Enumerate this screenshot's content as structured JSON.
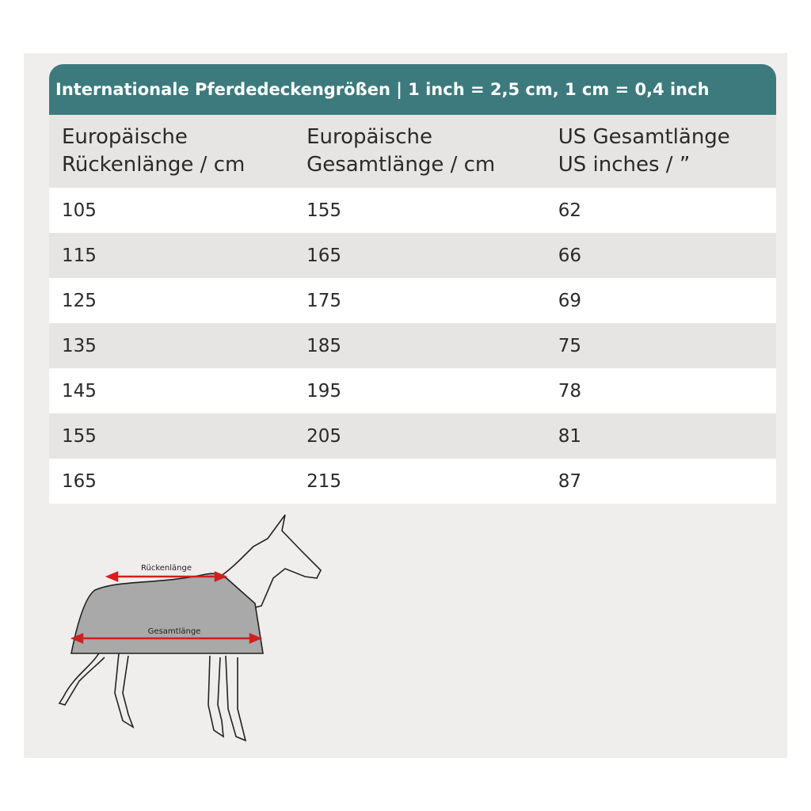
{
  "title": "Internationale Pferdedeckengrößen | 1 inch = 2,5 cm, 1 cm = 0,4 inch",
  "table": {
    "headers": [
      [
        "Europäische",
        "Rückenlänge / cm"
      ],
      [
        "Europäische",
        "Gesamtlänge / cm"
      ],
      [
        "US Gesamtlänge",
        "US inches / ”"
      ]
    ],
    "rows": [
      [
        105,
        155,
        62
      ],
      [
        115,
        165,
        66
      ],
      [
        125,
        175,
        69
      ],
      [
        135,
        185,
        75
      ],
      [
        145,
        195,
        78
      ],
      [
        155,
        205,
        81
      ],
      [
        165,
        215,
        87
      ]
    ]
  },
  "diagram": {
    "labels": [
      "Rückenlänge",
      "Gesamtlänge"
    ]
  }
}
